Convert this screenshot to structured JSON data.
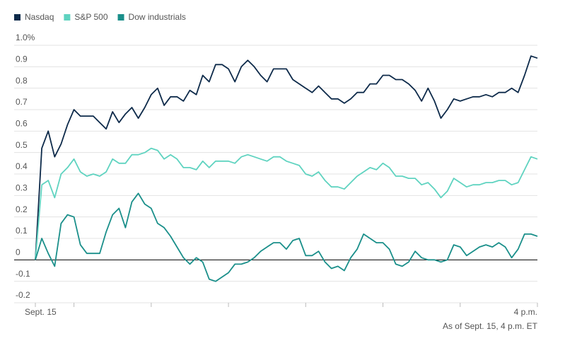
{
  "chart_data": {
    "type": "line",
    "annotation": "As of Sept. 15, 4 p.m. ET",
    "x": [
      0,
      5,
      10,
      15,
      20,
      25,
      30,
      35,
      40,
      45,
      50,
      55,
      60,
      65,
      70,
      75,
      80,
      85,
      90,
      95,
      100,
      105,
      110,
      115,
      120,
      125,
      130,
      135,
      140,
      145,
      150,
      155,
      160,
      165,
      170,
      175,
      180,
      185,
      190,
      195,
      200,
      205,
      210,
      215,
      220,
      225,
      230,
      235,
      240,
      245,
      250,
      255,
      260,
      265,
      270,
      275,
      280,
      285,
      290,
      295,
      300,
      305,
      310,
      315,
      320,
      325,
      330,
      335,
      340,
      345,
      350,
      355,
      360,
      365,
      370,
      375,
      380,
      385,
      390
    ],
    "series": [
      {
        "name": "Nasdaq",
        "color": "#0d2a4a",
        "values": [
          0,
          0.52,
          0.6,
          0.48,
          0.54,
          0.63,
          0.7,
          0.67,
          0.67,
          0.67,
          0.64,
          0.61,
          0.69,
          0.64,
          0.68,
          0.71,
          0.66,
          0.71,
          0.77,
          0.8,
          0.72,
          0.76,
          0.76,
          0.74,
          0.79,
          0.77,
          0.86,
          0.83,
          0.91,
          0.91,
          0.89,
          0.83,
          0.9,
          0.93,
          0.9,
          0.86,
          0.83,
          0.89,
          0.89,
          0.89,
          0.84,
          0.82,
          0.8,
          0.78,
          0.81,
          0.78,
          0.75,
          0.75,
          0.73,
          0.75,
          0.78,
          0.78,
          0.82,
          0.82,
          0.86,
          0.86,
          0.84,
          0.84,
          0.82,
          0.79,
          0.74,
          0.8,
          0.74,
          0.66,
          0.7,
          0.75,
          0.74,
          0.75,
          0.76,
          0.76,
          0.77,
          0.76,
          0.78,
          0.78,
          0.8,
          0.78,
          0.86,
          0.95,
          0.94
        ]
      },
      {
        "name": "S&P 500",
        "color": "#5fd3c0",
        "values": [
          0,
          0.35,
          0.37,
          0.29,
          0.4,
          0.43,
          0.47,
          0.41,
          0.39,
          0.4,
          0.39,
          0.41,
          0.47,
          0.45,
          0.45,
          0.49,
          0.49,
          0.5,
          0.52,
          0.51,
          0.47,
          0.49,
          0.47,
          0.43,
          0.43,
          0.42,
          0.46,
          0.43,
          0.46,
          0.46,
          0.46,
          0.45,
          0.48,
          0.49,
          0.48,
          0.47,
          0.46,
          0.48,
          0.48,
          0.46,
          0.45,
          0.44,
          0.4,
          0.39,
          0.41,
          0.37,
          0.34,
          0.34,
          0.33,
          0.36,
          0.39,
          0.41,
          0.43,
          0.42,
          0.45,
          0.43,
          0.39,
          0.39,
          0.38,
          0.38,
          0.35,
          0.36,
          0.33,
          0.29,
          0.32,
          0.38,
          0.36,
          0.34,
          0.35,
          0.35,
          0.36,
          0.36,
          0.37,
          0.37,
          0.35,
          0.36,
          0.42,
          0.48,
          0.47
        ]
      },
      {
        "name": "Dow industrials",
        "color": "#1a8f8a",
        "values": [
          0,
          0.1,
          0.03,
          -0.03,
          0.17,
          0.21,
          0.2,
          0.07,
          0.03,
          0.03,
          0.03,
          0.13,
          0.21,
          0.24,
          0.15,
          0.27,
          0.31,
          0.26,
          0.24,
          0.17,
          0.15,
          0.11,
          0.06,
          0.01,
          -0.02,
          0.01,
          -0.01,
          -0.09,
          -0.1,
          -0.08,
          -0.06,
          -0.02,
          -0.02,
          -0.01,
          0.01,
          0.04,
          0.06,
          0.08,
          0.08,
          0.05,
          0.09,
          0.1,
          0.02,
          0.02,
          0.04,
          -0.01,
          -0.04,
          -0.03,
          -0.05,
          0.01,
          0.05,
          0.12,
          0.1,
          0.08,
          0.08,
          0.05,
          -0.02,
          -0.03,
          -0.01,
          0.04,
          0.01,
          0,
          0,
          -0.01,
          0,
          0.07,
          0.06,
          0.02,
          0.04,
          0.06,
          0.07,
          0.06,
          0.08,
          0.06,
          0.01,
          0.05,
          0.12,
          0.12,
          0.11
        ]
      }
    ],
    "xlim": [
      0,
      390
    ],
    "xticks": [
      {
        "value": 0,
        "label": "Sept. 15"
      },
      {
        "value": 390,
        "label": "4 p.m."
      }
    ],
    "xminorticks": [
      30,
      90,
      150,
      210,
      270,
      330
    ],
    "ylim": [
      -0.2,
      1.0
    ],
    "yticks": [
      {
        "value": 1.0,
        "label": "1.0%"
      },
      0.9,
      0.8,
      0.7,
      0.6,
      0.5,
      0.4,
      0.3,
      0.2,
      0.1,
      0,
      -0.2,
      {
        "value": -0.1,
        "label": "-0.1"
      }
    ],
    "grid": true,
    "legend": "top-left"
  }
}
